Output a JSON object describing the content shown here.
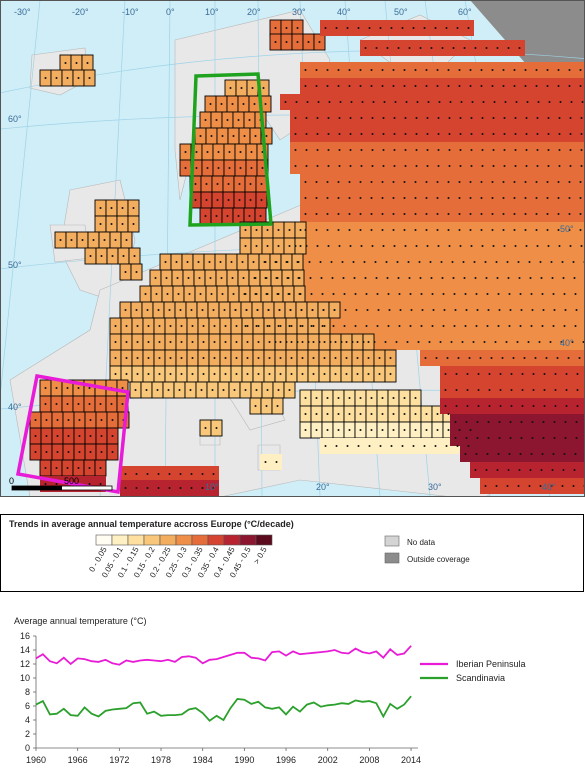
{
  "map": {
    "lon_labels": [
      "-30°",
      "-20°",
      "-10°",
      "0°",
      "10°",
      "20°",
      "30°",
      "40°",
      "50°",
      "60°"
    ],
    "lat_labels": [
      "60°",
      "50°",
      "40°",
      "50°",
      "40°"
    ],
    "bottom_labels": [
      "10°",
      "20°",
      "30°",
      "40°"
    ],
    "scale": [
      "0",
      "500"
    ],
    "regions": [
      {
        "name": "Iberian Peninsula box",
        "color": "#e81bd6"
      },
      {
        "name": "Scandinavia box",
        "color": "#1fa31f"
      }
    ]
  },
  "legend": {
    "title": "Trends in average annual temperature accross Europe (°C/decade)",
    "classes": [
      {
        "label": "0 - 0.05",
        "color": "#fffdf2"
      },
      {
        "label": "0.05 - 0.1",
        "color": "#fff0c4"
      },
      {
        "label": "0.1 - 0.15",
        "color": "#fde0a0"
      },
      {
        "label": "0.15 - 0.2",
        "color": "#f8c77a"
      },
      {
        "label": "0.2 - 0.25",
        "color": "#f3ad5f"
      },
      {
        "label": "0.25 - 0.3",
        "color": "#ee8e47"
      },
      {
        "label": "0.3 - 0.35",
        "color": "#e56d3a"
      },
      {
        "label": "0.35 - 0.4",
        "color": "#d4442e"
      },
      {
        "label": "0.4 - 0.45",
        "color": "#b82330"
      },
      {
        "label": "0.45 - 0.5",
        "color": "#8c1530"
      },
      {
        "label": "> 0.5",
        "color": "#5c0a1e"
      }
    ],
    "no_data": {
      "label": "No data",
      "color": "#d4d4d4"
    },
    "outside": {
      "label": "Outside coverage",
      "color": "#8c8c8c"
    }
  },
  "chart": {
    "title": "Average annual temperature (°C)"
  },
  "chart_data": {
    "type": "line",
    "title": "Average annual temperature (°C)",
    "xlabel": "",
    "ylabel": "",
    "ylim": [
      0,
      16
    ],
    "yticks": [
      0,
      2,
      4,
      6,
      8,
      10,
      12,
      14,
      16
    ],
    "xticks": [
      1960,
      1966,
      1972,
      1978,
      1984,
      1990,
      1996,
      2002,
      2008,
      2014
    ],
    "xlim": [
      1960,
      2015
    ],
    "legend_position": "right",
    "x": [
      1960,
      1961,
      1962,
      1963,
      1964,
      1965,
      1966,
      1967,
      1968,
      1969,
      1970,
      1971,
      1972,
      1973,
      1974,
      1975,
      1976,
      1977,
      1978,
      1979,
      1980,
      1981,
      1982,
      1983,
      1984,
      1985,
      1986,
      1987,
      1988,
      1989,
      1990,
      1991,
      1992,
      1993,
      1994,
      1995,
      1996,
      1997,
      1998,
      1999,
      2000,
      2001,
      2002,
      2003,
      2004,
      2005,
      2006,
      2007,
      2008,
      2009,
      2010,
      2011,
      2012,
      2013,
      2014
    ],
    "series": [
      {
        "name": "Iberian Peninsula",
        "color": "#e81bd6",
        "values": [
          12.8,
          13.4,
          12.4,
          12.1,
          12.9,
          12.0,
          12.8,
          12.7,
          12.4,
          12.3,
          12.6,
          12.1,
          11.9,
          12.5,
          12.3,
          12.5,
          12.6,
          12.5,
          12.4,
          12.6,
          12.3,
          13.0,
          13.1,
          12.9,
          12.1,
          12.6,
          12.7,
          13.0,
          13.3,
          13.6,
          13.6,
          12.9,
          12.8,
          12.5,
          13.7,
          13.8,
          13.2,
          13.8,
          13.4,
          13.5,
          13.6,
          13.7,
          13.8,
          14.0,
          13.6,
          13.5,
          14.2,
          13.7,
          13.5,
          13.8,
          12.9,
          14.1,
          13.3,
          13.5,
          14.6
        ]
      },
      {
        "name": "Scandinavia",
        "color": "#2ca02c",
        "values": [
          6.2,
          6.7,
          4.8,
          4.9,
          5.6,
          4.7,
          4.6,
          5.8,
          4.9,
          4.5,
          5.3,
          5.5,
          5.6,
          5.7,
          6.4,
          6.5,
          4.9,
          5.2,
          4.6,
          4.7,
          4.7,
          4.8,
          5.5,
          5.7,
          5.0,
          3.9,
          4.6,
          4.0,
          5.7,
          7.0,
          6.9,
          6.3,
          6.6,
          5.8,
          5.6,
          5.8,
          4.8,
          5.9,
          5.2,
          6.2,
          6.5,
          5.9,
          6.1,
          6.2,
          6.4,
          6.3,
          6.8,
          6.6,
          6.7,
          6.4,
          4.5,
          6.3,
          5.6,
          6.2,
          7.4
        ]
      }
    ]
  }
}
